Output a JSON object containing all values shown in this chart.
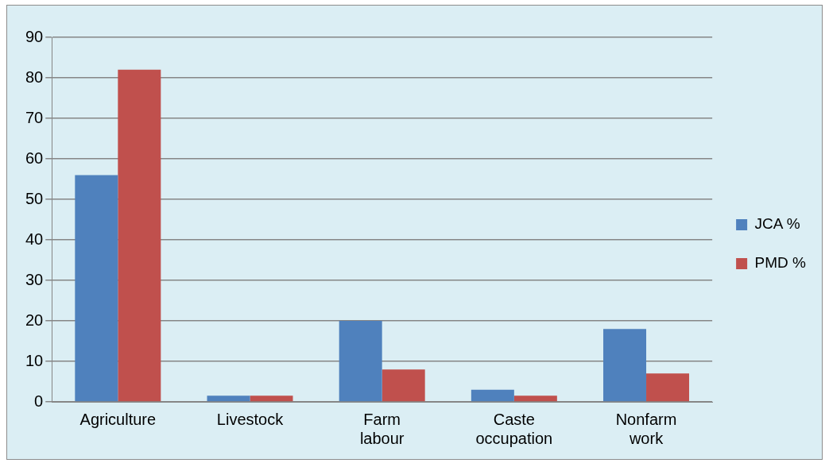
{
  "chart_data": {
    "type": "bar",
    "categories": [
      "Agriculture",
      "Livestock",
      "Farm labour",
      "Caste occupation",
      "Nonfarm work"
    ],
    "series": [
      {
        "name": "JCA %",
        "color": "#4f81bd",
        "values": [
          56,
          1.5,
          20,
          3,
          18
        ]
      },
      {
        "name": "PMD %",
        "color": "#c0504d",
        "values": [
          82,
          1.5,
          8,
          1.5,
          7
        ]
      }
    ],
    "ylim": [
      0,
      90
    ],
    "yticks": [
      0,
      10,
      20,
      30,
      40,
      50,
      60,
      70,
      80,
      90
    ],
    "grid": "y",
    "legend": "right"
  }
}
